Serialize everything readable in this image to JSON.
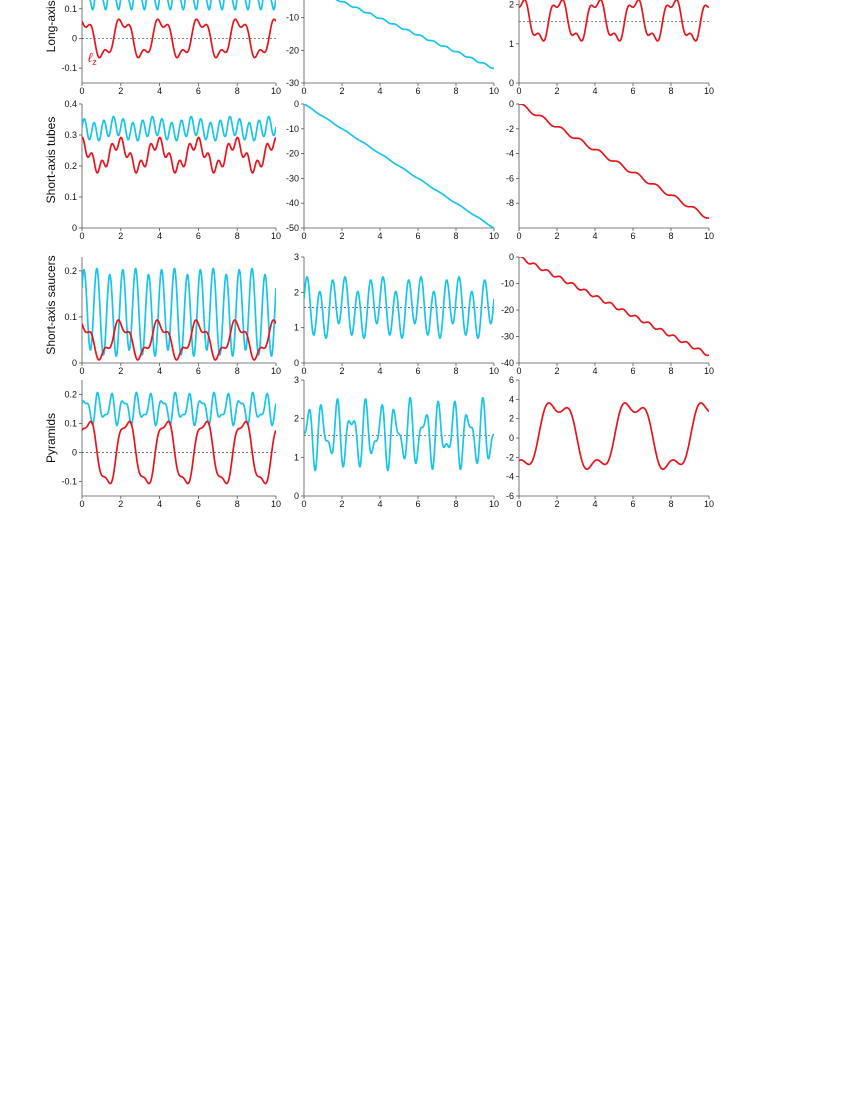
{
  "colors": {
    "cyan": "#18c4ea",
    "red": "#e8141c",
    "axis": "#555555",
    "ref": "#444444"
  },
  "row_labels": [
    "Long-axis tubes",
    "Short-axis tubes",
    "Short-axis saucers",
    "Pyramids"
  ],
  "annotation": {
    "symbol": "ℓ",
    "subscript": "z"
  },
  "chart_data": [
    {
      "id": "r1c1",
      "type": "line",
      "xlim": [
        0,
        10
      ],
      "ylim": [
        -0.15,
        0.18
      ],
      "x_ticks": [
        0,
        2,
        4,
        6,
        8,
        10
      ],
      "y_ticks": [
        -0.1,
        0,
        0.1
      ],
      "y_tick_labels": [
        "-0.1",
        "0",
        "0.1"
      ],
      "ref_y": 0,
      "series": [
        {
          "color": "cyan",
          "kind": "osc",
          "base": 0.14,
          "terms": [
            [
              0.035,
              1.5,
              0
            ],
            [
              0.015,
              3.0,
              1.0
            ]
          ]
        },
        {
          "color": "red",
          "kind": "osc",
          "base": 0.0,
          "terms": [
            [
              0.06,
              0.5,
              0.2
            ],
            [
              0.02,
              1.5,
              0.5
            ]
          ]
        }
      ]
    },
    {
      "id": "r1c2",
      "type": "line",
      "xlim": [
        0,
        10
      ],
      "ylim": [
        -30,
        0
      ],
      "x_ticks": [
        0,
        2,
        4,
        6,
        8,
        10
      ],
      "y_ticks": [
        -30,
        -20,
        -10
      ],
      "y_tick_labels": [
        "-30",
        "-20",
        "-10"
      ],
      "series": [
        {
          "color": "cyan",
          "kind": "drift",
          "start": 0,
          "slope": -2.55,
          "terms": [
            [
              0.25,
              1.5,
              0
            ]
          ]
        }
      ]
    },
    {
      "id": "r1c3",
      "type": "line",
      "xlim": [
        0,
        10
      ],
      "ylim": [
        0,
        2.5
      ],
      "x_ticks": [
        0,
        2,
        4,
        6,
        8,
        10
      ],
      "y_ticks": [
        0,
        1,
        2
      ],
      "y_tick_labels": [
        "0",
        "1",
        "2"
      ],
      "ref_y": 1.57,
      "series": [
        {
          "color": "red",
          "kind": "osc",
          "base": 1.6,
          "terms": [
            [
              0.5,
              0.5,
              0.2
            ],
            [
              0.15,
              1.5,
              0.7
            ]
          ]
        }
      ]
    },
    {
      "id": "r2c1",
      "type": "line",
      "xlim": [
        0,
        10
      ],
      "ylim": [
        0,
        0.4
      ],
      "x_ticks": [
        0,
        2,
        4,
        6,
        8,
        10
      ],
      "y_ticks": [
        0,
        0.1,
        0.2,
        0.3,
        0.4
      ],
      "y_tick_labels": [
        "0",
        "0.1",
        "0.2",
        "0.3",
        "0.4"
      ],
      "series": [
        {
          "color": "cyan",
          "kind": "osc",
          "base": 0.32,
          "terms": [
            [
              0.03,
              2.0,
              0
            ],
            [
              0.01,
              0.5,
              0.4
            ]
          ]
        },
        {
          "color": "red",
          "kind": "osc",
          "base": 0.235,
          "terms": [
            [
              0.04,
              0.5,
              0.3
            ],
            [
              0.02,
              2.0,
              0.2
            ]
          ]
        }
      ]
    },
    {
      "id": "r2c2",
      "type": "line",
      "xlim": [
        0,
        10
      ],
      "ylim": [
        -50,
        0
      ],
      "x_ticks": [
        0,
        2,
        4,
        6,
        8,
        10
      ],
      "y_ticks": [
        -50,
        -40,
        -30,
        -20,
        -10,
        0
      ],
      "y_tick_labels": [
        "-50",
        "-40",
        "-30",
        "-20",
        "-10",
        "0"
      ],
      "series": [
        {
          "color": "cyan",
          "kind": "drift",
          "start": 0,
          "slope": -5.0,
          "terms": [
            [
              0.15,
              1.0,
              0
            ]
          ]
        }
      ]
    },
    {
      "id": "r2c3",
      "type": "line",
      "xlim": [
        0,
        10
      ],
      "ylim": [
        -10,
        0
      ],
      "x_ticks": [
        0,
        2,
        4,
        6,
        8,
        10
      ],
      "y_ticks": [
        -8,
        -6,
        -4,
        -2,
        0
      ],
      "y_tick_labels": [
        "-8",
        "-6",
        "-4",
        "-2",
        "0"
      ],
      "series": [
        {
          "color": "red",
          "kind": "drift",
          "start": 0,
          "slope": -0.92,
          "terms": [
            [
              0.15,
              1.0,
              0
            ]
          ]
        }
      ]
    },
    {
      "id": "r3c1",
      "type": "line",
      "xlim": [
        0,
        10
      ],
      "ylim": [
        0,
        0.23
      ],
      "x_ticks": [
        0,
        2,
        4,
        6,
        8,
        10
      ],
      "y_ticks": [
        0,
        0.1,
        0.2
      ],
      "y_tick_labels": [
        "0",
        "0.1",
        "0.2"
      ],
      "series": [
        {
          "color": "cyan",
          "kind": "osc",
          "base": 0.11,
          "terms": [
            [
              0.09,
              1.5,
              0.1
            ],
            [
              0.008,
              0.5,
              0
            ]
          ]
        },
        {
          "color": "red",
          "kind": "osc",
          "base": 0.05,
          "terms": [
            [
              0.035,
              0.5,
              0.25
            ],
            [
              0.012,
              1.5,
              0.5
            ]
          ]
        }
      ]
    },
    {
      "id": "r3c2",
      "type": "line",
      "xlim": [
        0,
        10
      ],
      "ylim": [
        0,
        3
      ],
      "x_ticks": [
        0,
        2,
        4,
        6,
        8,
        10
      ],
      "y_ticks": [
        0,
        1,
        2,
        3
      ],
      "y_tick_labels": [
        "0",
        "1",
        "2",
        "3"
      ],
      "ref_y": 1.57,
      "series": [
        {
          "color": "cyan",
          "kind": "osc",
          "base": 1.57,
          "terms": [
            [
              0.7,
              1.5,
              0
            ],
            [
              0.25,
              0.5,
              0.3
            ]
          ]
        }
      ]
    },
    {
      "id": "r3c3",
      "type": "line",
      "xlim": [
        0,
        10
      ],
      "ylim": [
        -40,
        0
      ],
      "x_ticks": [
        0,
        2,
        4,
        6,
        8,
        10
      ],
      "y_ticks": [
        -40,
        -30,
        -20,
        -10,
        0
      ],
      "y_tick_labels": [
        "-40",
        "-30",
        "-20",
        "-10",
        "0"
      ],
      "series": [
        {
          "color": "red",
          "kind": "drift",
          "start": 0,
          "slope": -3.7,
          "terms": [
            [
              0.6,
              1.5,
              0
            ]
          ]
        }
      ]
    },
    {
      "id": "r4c1",
      "type": "line",
      "xlim": [
        0,
        10
      ],
      "ylim": [
        -0.15,
        0.25
      ],
      "x_ticks": [
        0,
        2,
        4,
        6,
        8,
        10
      ],
      "y_ticks": [
        -0.1,
        0,
        0.1,
        0.2
      ],
      "y_tick_labels": [
        "-0.1",
        "0",
        "0.1",
        "0.2"
      ],
      "ref_y": 0,
      "series": [
        {
          "color": "cyan",
          "kind": "osc",
          "base": 0.15,
          "terms": [
            [
              0.04,
              1.5,
              0
            ],
            [
              0.02,
              2.5,
              0.3
            ]
          ]
        },
        {
          "color": "red",
          "kind": "osc",
          "base": 0.0,
          "terms": [
            [
              0.11,
              0.5,
              0.1
            ],
            [
              0.02,
              1.5,
              0.4
            ]
          ]
        }
      ]
    },
    {
      "id": "r4c2",
      "type": "line",
      "xlim": [
        0,
        10
      ],
      "ylim": [
        0,
        3
      ],
      "x_ticks": [
        0,
        2,
        4,
        6,
        8,
        10
      ],
      "y_ticks": [
        0,
        1,
        2,
        3
      ],
      "y_tick_labels": [
        "0",
        "1",
        "2",
        "3"
      ],
      "ref_y": 1.57,
      "series": [
        {
          "color": "cyan",
          "kind": "osc",
          "base": 1.6,
          "terms": [
            [
              0.6,
              1.3,
              0
            ],
            [
              0.35,
              2.1,
              0.5
            ]
          ]
        }
      ]
    },
    {
      "id": "r4c3",
      "type": "line",
      "xlim": [
        0,
        10
      ],
      "ylim": [
        -6,
        6
      ],
      "x_ticks": [
        0,
        2,
        4,
        6,
        8,
        10
      ],
      "y_ticks": [
        -6,
        -4,
        -2,
        0,
        2,
        4,
        6
      ],
      "y_tick_labels": [
        "-6",
        "-4",
        "-2",
        "0",
        "2",
        "4",
        "6"
      ],
      "series": [
        {
          "color": "red",
          "kind": "osc",
          "base": 0.2,
          "terms": [
            [
              3.5,
              0.25,
              0.75
            ],
            [
              1.0,
              0.75,
              0.2
            ]
          ]
        }
      ]
    }
  ]
}
